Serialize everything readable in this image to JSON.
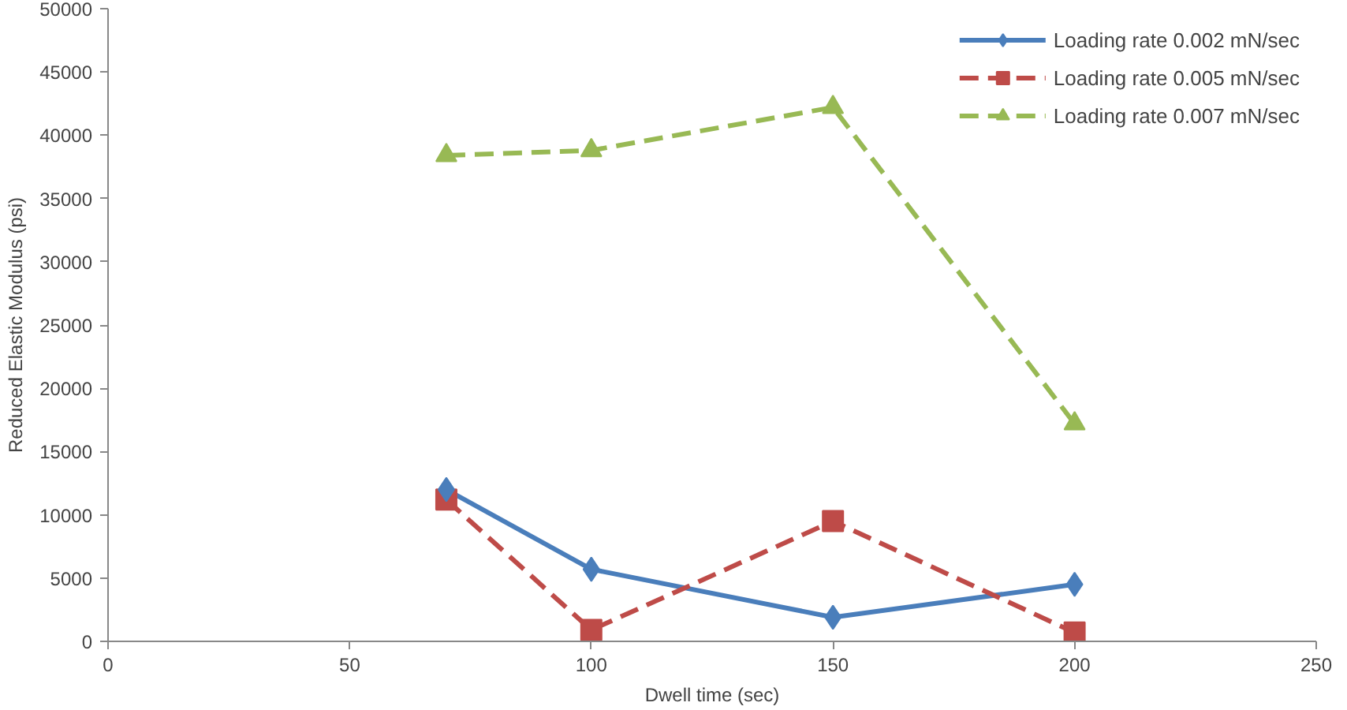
{
  "chart_data": {
    "type": "line",
    "xlabel": "Dwell time (sec)",
    "ylabel": "Reduced Elastic Modulus (psi)",
    "x": [
      70,
      100,
      150,
      200
    ],
    "series": [
      {
        "name": "Loading rate 0.002 mN/sec",
        "color": "#4a7ebb",
        "values": [
          12000,
          5700,
          1900,
          4500
        ],
        "marker": "diamond",
        "line_style": "solid"
      },
      {
        "name": "Loading rate 0.005 mN/sec",
        "color": "#be4b48",
        "values": [
          11200,
          900,
          9500,
          700
        ],
        "marker": "square",
        "line_style": "dashed"
      },
      {
        "name": "Loading rate 0.007 mN/sec",
        "color": "#98b954",
        "values": [
          38400,
          38800,
          42200,
          17200
        ],
        "marker": "triangle",
        "line_style": "dashed"
      }
    ],
    "xlim": [
      0,
      250
    ],
    "xticks": [
      0,
      50,
      100,
      150,
      200,
      250
    ],
    "ylim": [
      0,
      50000
    ],
    "yticks": [
      0,
      5000,
      10000,
      15000,
      20000,
      25000,
      30000,
      35000,
      40000,
      45000,
      50000
    ],
    "grid": false,
    "legend": "top right"
  }
}
